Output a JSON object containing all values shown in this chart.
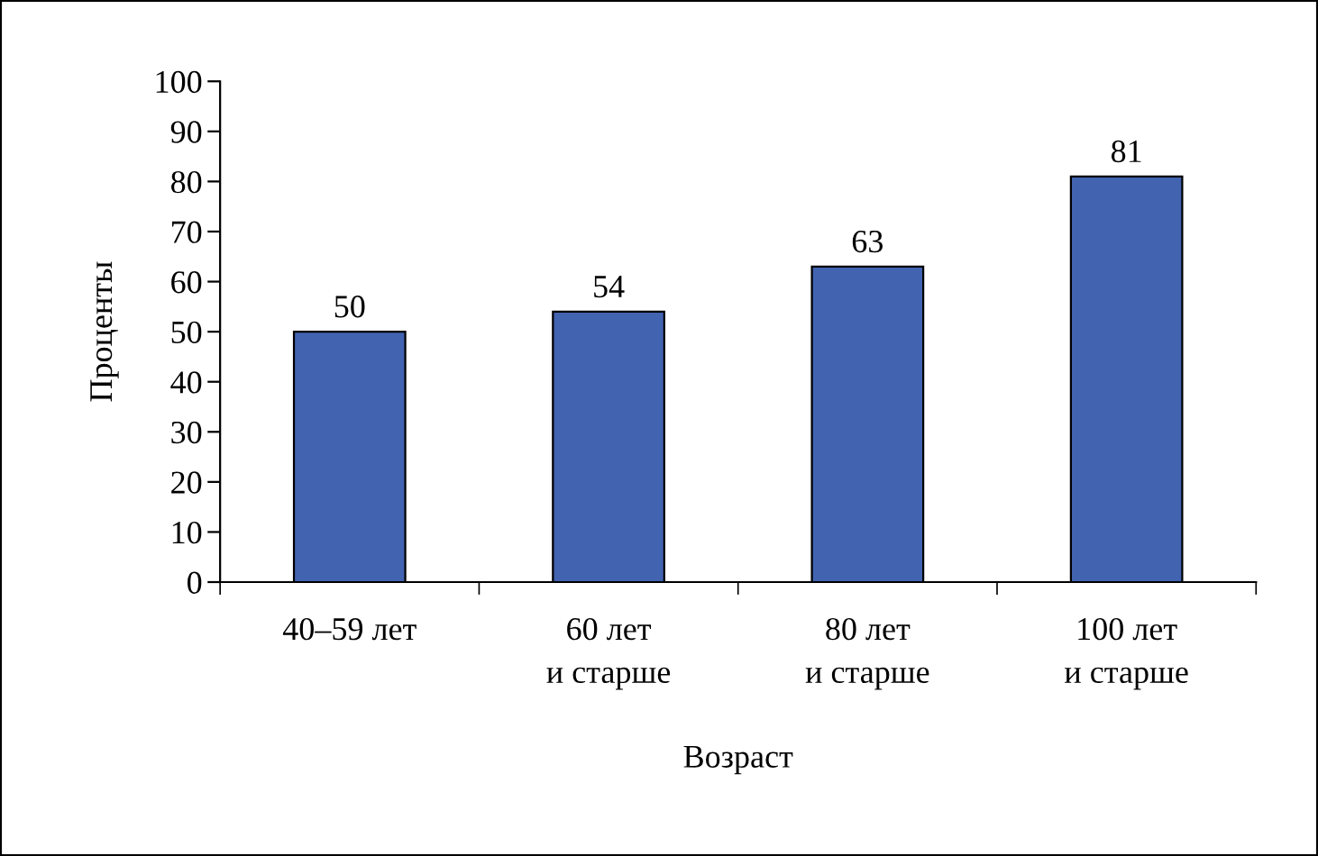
{
  "chart_data": {
    "type": "bar",
    "xlabel": "Возраст",
    "ylabel": "Проценты",
    "categories": [
      "40–59 лет",
      "60 лет\nи старше",
      "80 лет\nи старше",
      "100 лет\nи старше"
    ],
    "values": [
      50,
      54,
      63,
      81
    ],
    "color": "#4263b0",
    "ylim": [
      0,
      100
    ],
    "yticks": [
      0,
      10,
      20,
      30,
      40,
      50,
      60,
      70,
      80,
      90,
      100
    ],
    "data_labels": true,
    "grid": false,
    "legend": false
  }
}
